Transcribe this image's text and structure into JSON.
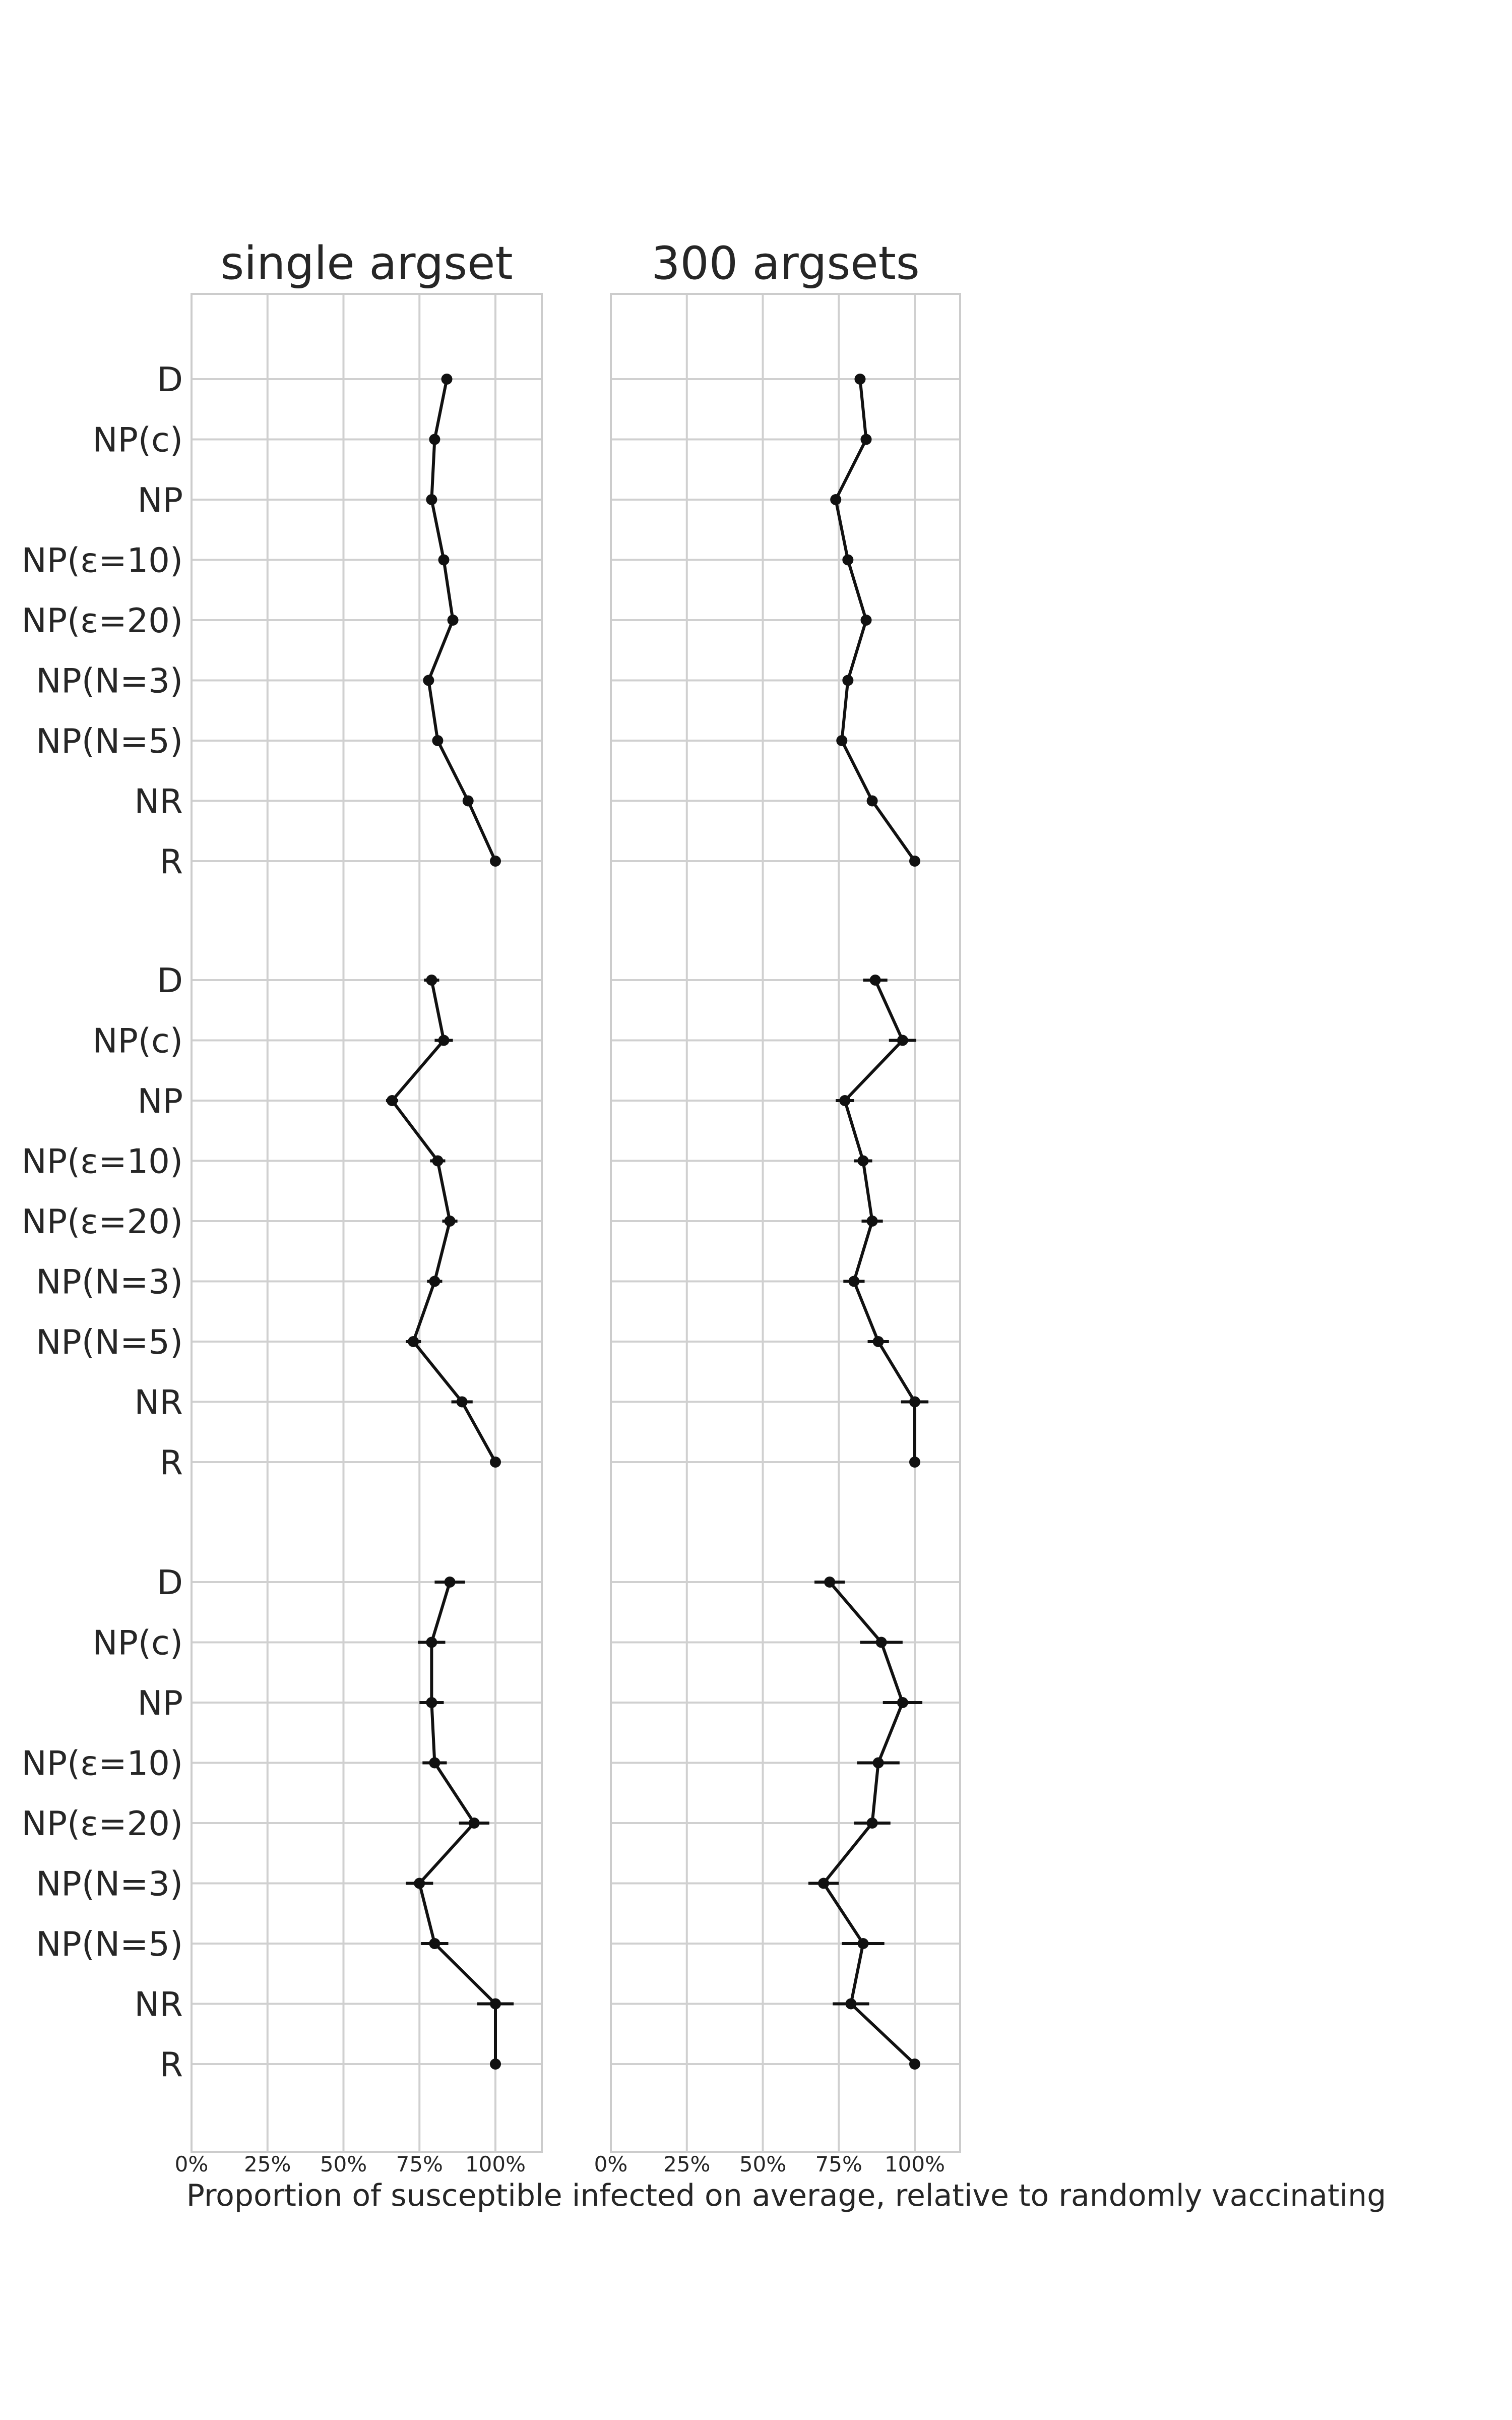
{
  "chart_data": {
    "type": "line",
    "xlabel": "Proportion of susceptible infected on average, relative to randomly vaccinating",
    "xticks": [
      "0%",
      "25%",
      "50%",
      "75%",
      "100%"
    ],
    "xlim": [
      0,
      1.15
    ],
    "orientation": "horizontal",
    "grid": true,
    "categories": [
      "D",
      "NP(c)",
      "NP",
      "NP(ε=10)",
      "NP(ε=20)",
      "NP(N=3)",
      "NP(N=5)",
      "NR",
      "R"
    ],
    "panels": [
      {
        "title": "single argset",
        "groups": [
          {
            "values": [
              0.84,
              0.8,
              0.79,
              0.83,
              0.86,
              0.78,
              0.81,
              0.91,
              1.0
            ],
            "errors": [
              0.012,
              0.01,
              0.01,
              0.012,
              0.012,
              0.012,
              0.012,
              0.015,
              0.0
            ]
          },
          {
            "values": [
              0.79,
              0.83,
              0.66,
              0.81,
              0.85,
              0.8,
              0.73,
              0.89,
              1.0
            ],
            "errors": [
              0.025,
              0.03,
              0.02,
              0.025,
              0.025,
              0.025,
              0.025,
              0.035,
              0.0
            ]
          },
          {
            "values": [
              0.85,
              0.79,
              0.79,
              0.8,
              0.93,
              0.75,
              0.8,
              1.0,
              1.0
            ],
            "errors": [
              0.05,
              0.045,
              0.04,
              0.04,
              0.05,
              0.045,
              0.045,
              0.06,
              0.0
            ]
          }
        ]
      },
      {
        "title": "300 argsets",
        "groups": [
          {
            "values": [
              0.82,
              0.84,
              0.74,
              0.78,
              0.84,
              0.78,
              0.76,
              0.86,
              1.0
            ],
            "errors": [
              0.015,
              0.015,
              0.012,
              0.015,
              0.015,
              0.015,
              0.015,
              0.015,
              0.0
            ]
          },
          {
            "values": [
              0.87,
              0.96,
              0.77,
              0.83,
              0.86,
              0.8,
              0.88,
              1.0,
              1.0
            ],
            "errors": [
              0.04,
              0.045,
              0.03,
              0.03,
              0.035,
              0.035,
              0.035,
              0.045,
              0.0
            ]
          },
          {
            "values": [
              0.72,
              0.89,
              0.96,
              0.88,
              0.86,
              0.7,
              0.83,
              0.79,
              1.0
            ],
            "errors": [
              0.05,
              0.07,
              0.065,
              0.07,
              0.06,
              0.05,
              0.07,
              0.06,
              0.0
            ]
          }
        ]
      }
    ]
  }
}
